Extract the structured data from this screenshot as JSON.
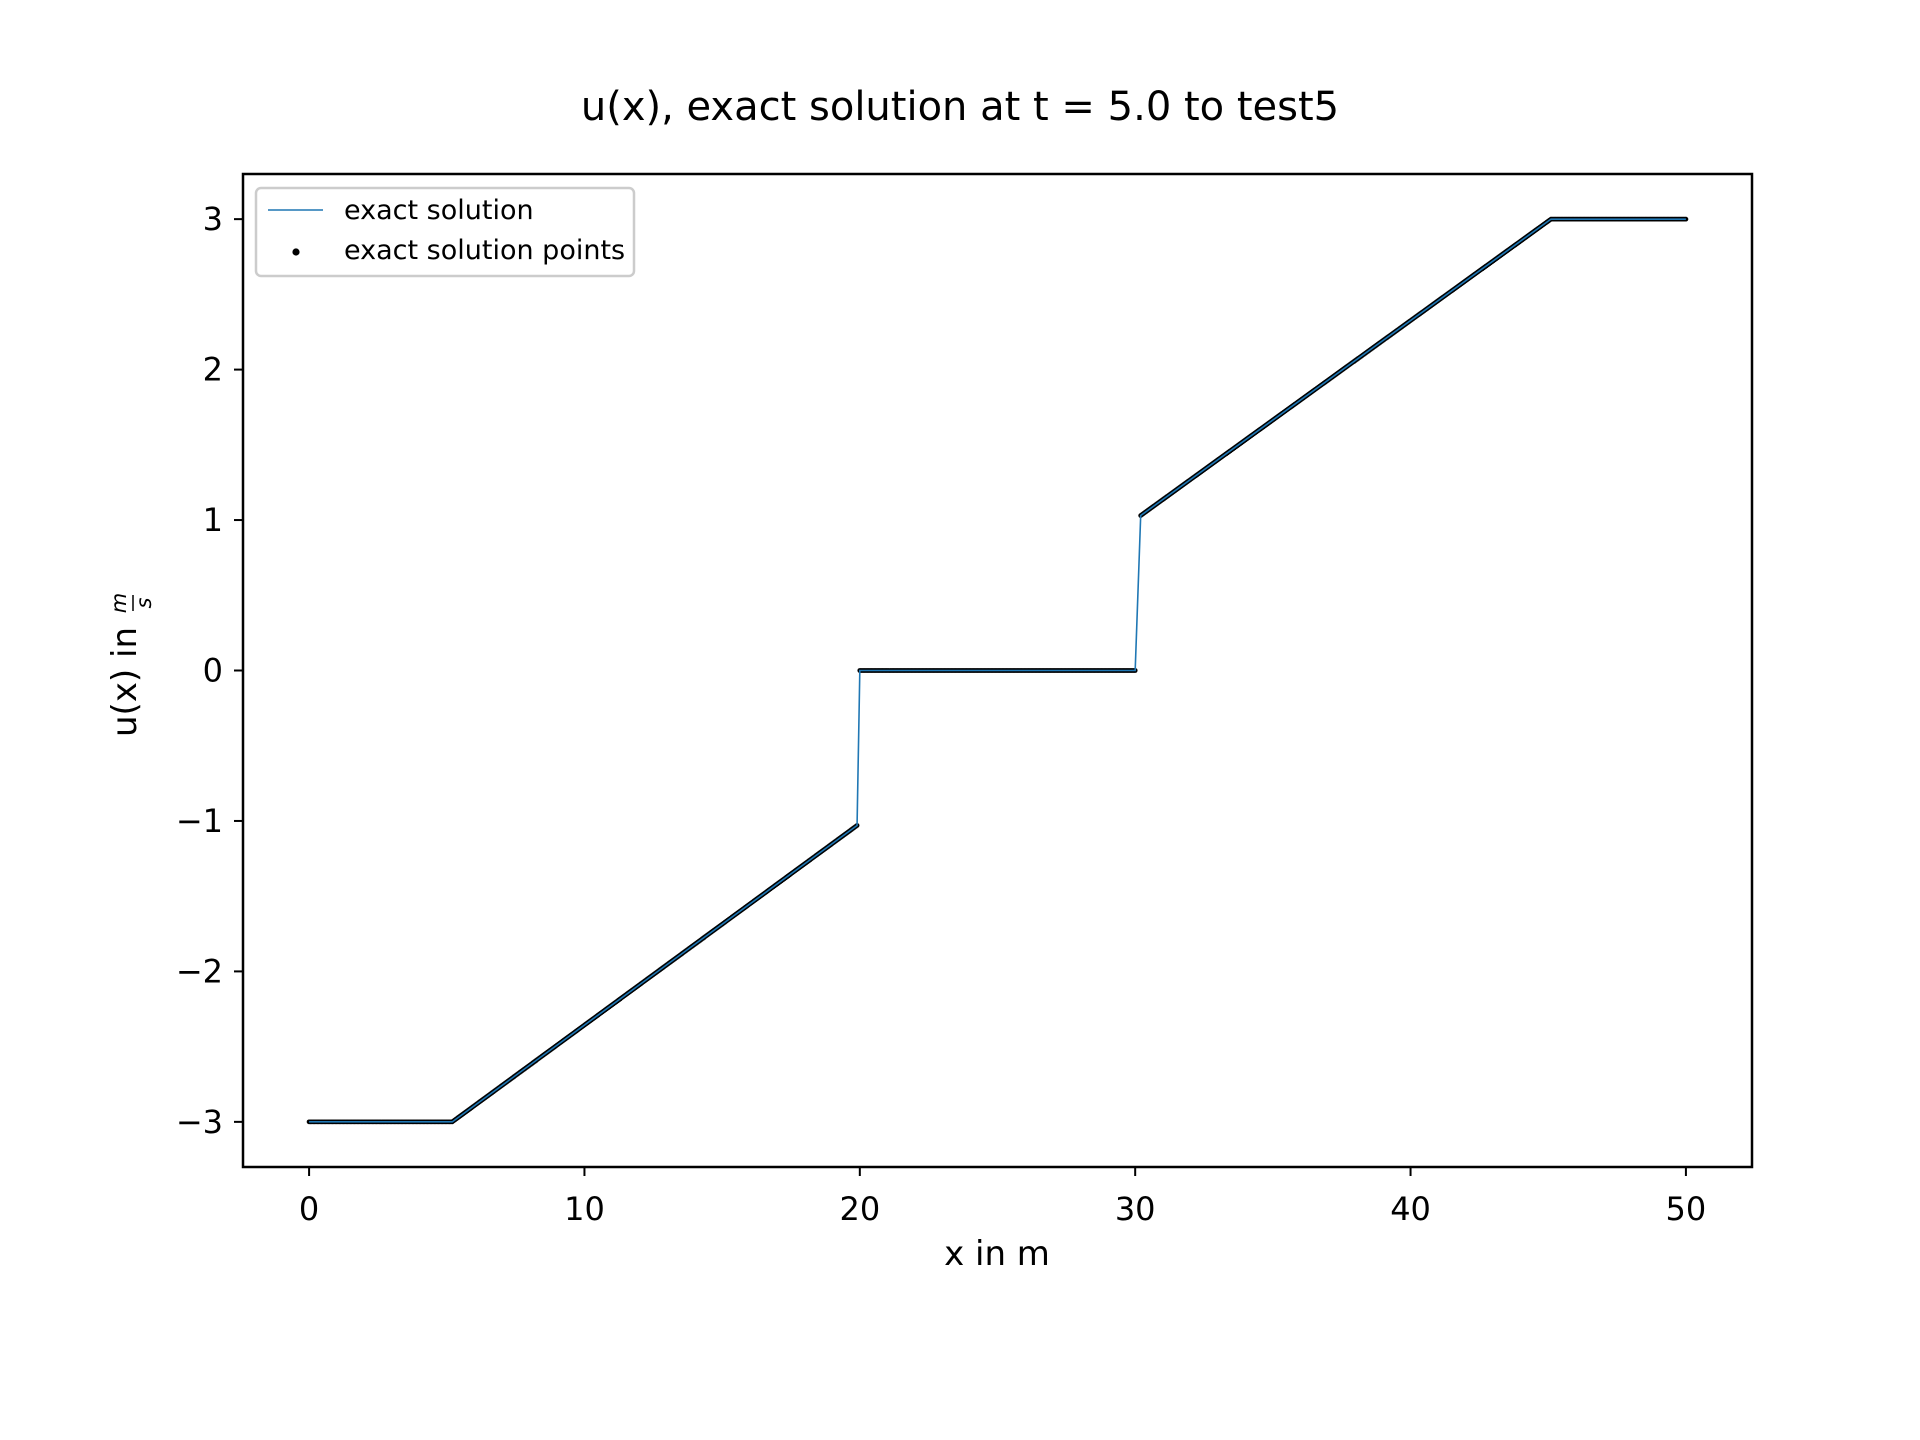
{
  "chart_data": {
    "type": "line",
    "title": "u(x), exact solution at t = 5.0 to test5",
    "xlabel": "x in m",
    "ylabel": "u(x) in",
    "ylabel_unit": {
      "numerator": "m",
      "denominator": "s"
    },
    "xlim": [
      -2.4,
      52.4
    ],
    "ylim": [
      -3.3,
      3.3
    ],
    "xticks": [
      0,
      10,
      20,
      30,
      40,
      50
    ],
    "xtick_labels": [
      "0",
      "10",
      "20",
      "30",
      "40",
      "50"
    ],
    "yticks": [
      -3,
      -2,
      -1,
      0,
      1,
      2,
      3
    ],
    "ytick_labels": [
      "−3",
      "−2",
      "−1",
      "0",
      "1",
      "2",
      "3"
    ],
    "grid": false,
    "legend_position": "top-left",
    "series": [
      {
        "name": "exact solution",
        "style": "line",
        "color": "#1f77b4",
        "x": [
          0,
          5.2,
          19.9,
          20.0,
          30.0,
          30.2,
          45.1,
          50.0
        ],
        "y": [
          -3.0,
          -3.0,
          -1.03,
          0.0,
          0.0,
          1.03,
          3.0,
          3.0
        ]
      },
      {
        "name": "exact solution points",
        "style": "points",
        "color": "#000000",
        "x": [
          0,
          5.2,
          19.9,
          20.0,
          30.0,
          30.2,
          45.1,
          50.0
        ],
        "y": [
          -3.0,
          -3.0,
          -1.03,
          0.0,
          0.0,
          1.03,
          3.0,
          3.0
        ]
      }
    ]
  }
}
